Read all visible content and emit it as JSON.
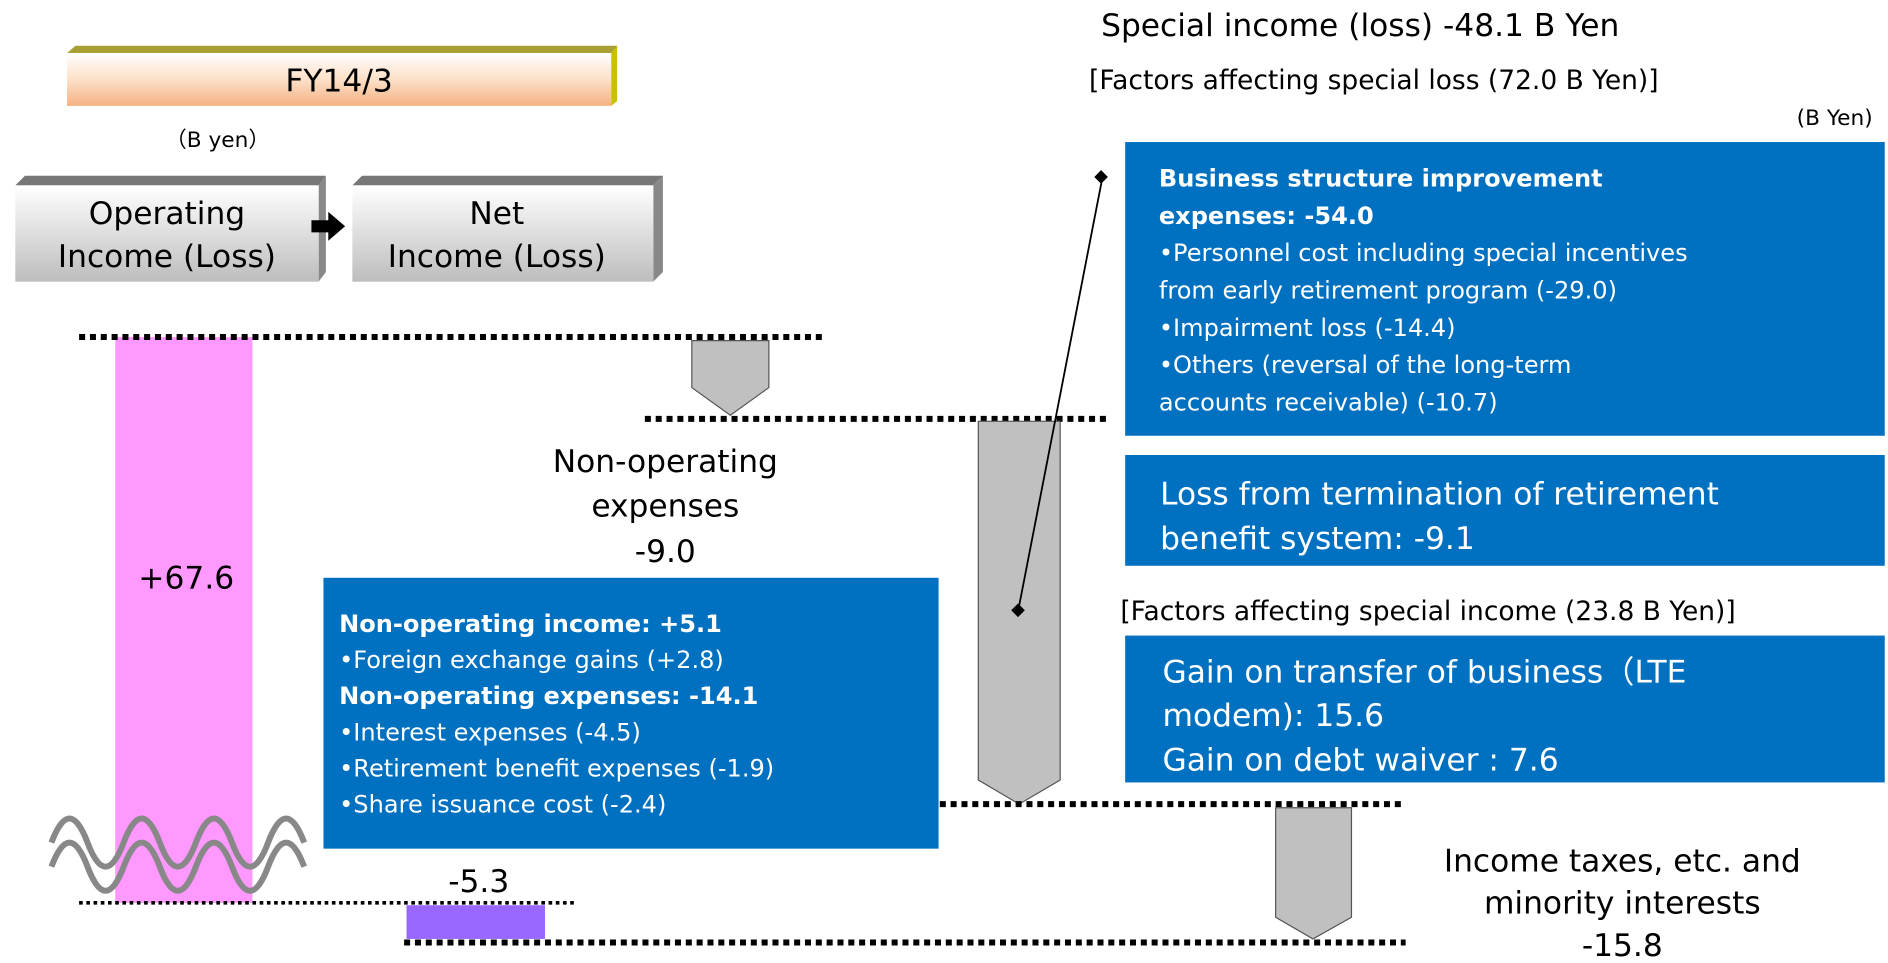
{
  "header": {
    "period": "FY14/3",
    "unit": "（B yen）"
  },
  "legend": {
    "from": [
      "Operating",
      "Income (Loss)"
    ],
    "to": [
      "Net",
      "Income (Loss)"
    ]
  },
  "operating_income": "+67.6",
  "non_operating": {
    "label": [
      "Non-operating",
      "expenses",
      "-9.0"
    ],
    "details": [
      {
        "text": "Non-operating income: +5.1",
        "bold": true
      },
      {
        "text": "•Foreign exchange gains (+2.8)",
        "bold": false
      },
      {
        "text": "Non-operating expenses: -14.1",
        "bold": true
      },
      {
        "text": "•Interest expenses (-4.5)",
        "bold": false
      },
      {
        "text": "•Retirement benefit expenses (-1.9)",
        "bold": false
      },
      {
        "text": "•Share issuance  cost (-2.4)",
        "bold": false
      }
    ]
  },
  "net_income": "-5.3",
  "special": {
    "title": "Special income (loss) -48.1 B Yen",
    "loss_heading": "[Factors affecting special loss (72.0 B Yen)]",
    "unit": "(B Yen)",
    "loss_box_1": [
      {
        "text": "Business structure improvement",
        "bold": true
      },
      {
        "text": "expenses: -54.0",
        "bold": true
      },
      {
        "text": "•Personnel cost including special incentives",
        "bold": false
      },
      {
        "text": " from early retirement program (-29.0)",
        "bold": false
      },
      {
        "text": "•Impairment loss (-14.4)",
        "bold": false
      },
      {
        "text": "•Others (reversal of the long-term",
        "bold": false
      },
      {
        "text": " accounts receivable) (-10.7)",
        "bold": false
      }
    ],
    "loss_box_2": [
      "Loss from termination of retirement",
      "benefit system: -9.1"
    ],
    "income_heading": "[Factors affecting special income (23.8 B Yen)]",
    "income_box": [
      "Gain on transfer of business（LTE",
      "modem): 15.6",
      "Gain on debt waiver : 7.6"
    ]
  },
  "taxes": [
    "Income taxes, etc. and",
    "minority interests",
    "-15.8"
  ]
}
